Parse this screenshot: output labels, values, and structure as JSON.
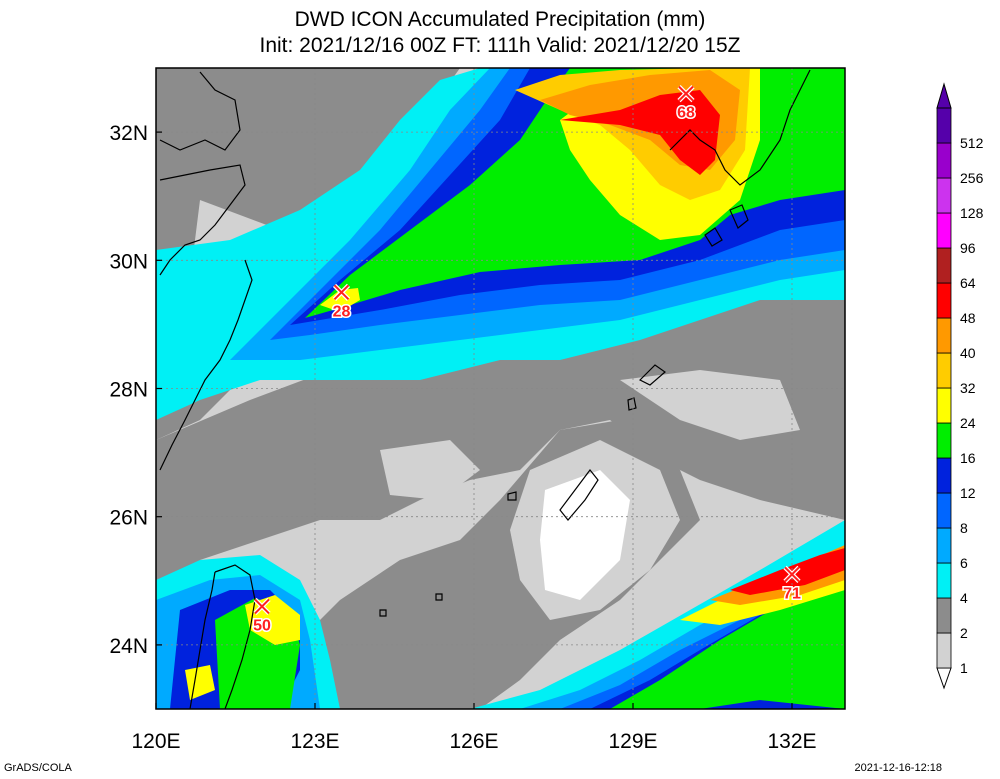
{
  "title": {
    "line1": "DWD ICON Accumulated Precipitation (mm)",
    "line2": "Init: 2021/12/16 00Z  FT: 111h  Valid: 2021/12/20 15Z"
  },
  "axes": {
    "x_ticks": [
      {
        "lon": 120,
        "label": "120E"
      },
      {
        "lon": 123,
        "label": "123E"
      },
      {
        "lon": 126,
        "label": "126E"
      },
      {
        "lon": 129,
        "label": "129E"
      },
      {
        "lon": 132,
        "label": "132E"
      }
    ],
    "y_ticks": [
      {
        "lat": 24,
        "label": "24N"
      },
      {
        "lat": 26,
        "label": "26N"
      },
      {
        "lat": 28,
        "label": "28N"
      },
      {
        "lat": 30,
        "label": "30N"
      },
      {
        "lat": 32,
        "label": "32N"
      }
    ],
    "lon_range": [
      120,
      133
    ],
    "lat_range": [
      23,
      33
    ]
  },
  "colorbar": {
    "levels": [
      {
        "label": "1",
        "color": "#d2d2d2"
      },
      {
        "label": "2",
        "color": "#8c8c8c"
      },
      {
        "label": "4",
        "color": "#00f0f5"
      },
      {
        "label": "6",
        "color": "#00aaff"
      },
      {
        "label": "8",
        "color": "#0066ff"
      },
      {
        "label": "12",
        "color": "#0022dd"
      },
      {
        "label": "16",
        "color": "#00ee00"
      },
      {
        "label": "24",
        "color": "#ffff00"
      },
      {
        "label": "32",
        "color": "#ffcc00"
      },
      {
        "label": "40",
        "color": "#ff9900"
      },
      {
        "label": "48",
        "color": "#ff0000"
      },
      {
        "label": "64",
        "color": "#b02020"
      },
      {
        "label": "96",
        "color": "#ff00ff"
      },
      {
        "label": "128",
        "color": "#cc33ee"
      },
      {
        "label": "256",
        "color": "#9900cc"
      },
      {
        "label": "512",
        "color": "#5500aa"
      }
    ],
    "bottom_color": "#ffffff",
    "top_color": "#5500aa"
  },
  "maxima": [
    {
      "lon": 130.0,
      "lat": 32.6,
      "value": "68"
    },
    {
      "lon": 123.5,
      "lat": 29.5,
      "value": "28"
    },
    {
      "lon": 122.0,
      "lat": 24.6,
      "value": "50"
    },
    {
      "lon": 132.0,
      "lat": 25.1,
      "value": "71"
    }
  ],
  "credit": "GrADS/COLA",
  "timestamp": "2021-12-16-12:18"
}
